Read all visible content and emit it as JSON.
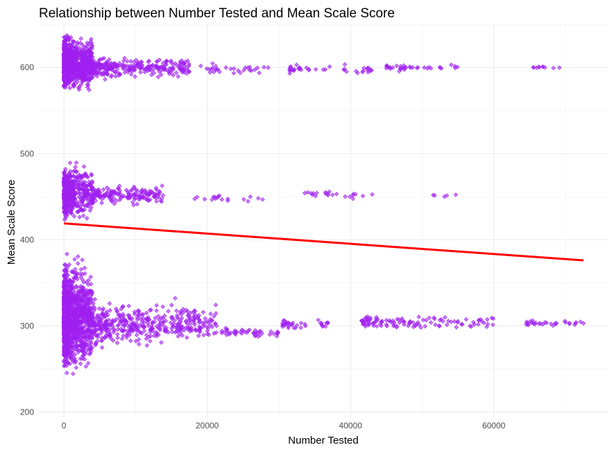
{
  "chart_data": {
    "type": "scatter",
    "title": "Relationship between Number Tested and Mean Scale Score",
    "xlabel": "Number Tested",
    "ylabel": "Mean Scale Score",
    "xlim": [
      -3500,
      76000
    ],
    "ylim": [
      193,
      651
    ],
    "x_ticks": [
      0,
      20000,
      40000,
      60000
    ],
    "x_tick_labels": [
      "0",
      "20000",
      "40000",
      "60000"
    ],
    "y_ticks": [
      200,
      300,
      400,
      500,
      600
    ],
    "y_tick_labels": [
      "200",
      "300",
      "400",
      "500",
      "600"
    ],
    "grid": true,
    "theme": "minimal",
    "point_color": "#a020f0",
    "line_color": "#ff0000",
    "trend_line": {
      "x": [
        0,
        72500
      ],
      "y": [
        419,
        376
      ]
    },
    "series": [
      {
        "clusters": [
          {
            "x_range": [
              0,
              4000
            ],
            "y_center": 605,
            "y_spread": 42,
            "n": 900
          },
          {
            "x_range": [
              4000,
              17500
            ],
            "y_center": 600,
            "y_spread": 18,
            "n": 260
          },
          {
            "x_range": [
              19000,
              29000
            ],
            "y_center": 598,
            "y_spread": 8,
            "n": 30
          },
          {
            "x_range": [
              31500,
              43500
            ],
            "y_center": 598,
            "y_spread": 7,
            "n": 40
          },
          {
            "x_range": [
              45000,
              55000
            ],
            "y_center": 600,
            "y_spread": 6,
            "n": 35
          },
          {
            "x_range": [
              65500,
              69500
            ],
            "y_center": 600,
            "y_spread": 2,
            "n": 10
          },
          {
            "x_range": [
              0,
              4000
            ],
            "y_center": 455,
            "y_spread": 42,
            "n": 500
          },
          {
            "x_range": [
              4000,
              14000
            ],
            "y_center": 452,
            "y_spread": 16,
            "n": 160
          },
          {
            "x_range": [
              17500,
              28500
            ],
            "y_center": 448,
            "y_spread": 6,
            "n": 18
          },
          {
            "x_range": [
              33500,
              43500
            ],
            "y_center": 452,
            "y_spread": 8,
            "n": 22
          },
          {
            "x_range": [
              51500,
              55000
            ],
            "y_center": 452,
            "y_spread": 3,
            "n": 5
          },
          {
            "x_range": [
              0,
              4000
            ],
            "y_center": 310,
            "y_spread": 85,
            "n": 1300
          },
          {
            "x_range": [
              4000,
              21500
            ],
            "y_center": 302,
            "y_spread": 34,
            "n": 420
          },
          {
            "x_range": [
              22000,
              30000
            ],
            "y_center": 292,
            "y_spread": 8,
            "n": 45
          },
          {
            "x_range": [
              30500,
              37500
            ],
            "y_center": 302,
            "y_spread": 8,
            "n": 35
          },
          {
            "x_range": [
              41500,
              60500
            ],
            "y_center": 304,
            "y_spread": 12,
            "n": 110
          },
          {
            "x_range": [
              64500,
              73000
            ],
            "y_center": 303,
            "y_spread": 5,
            "n": 30
          }
        ]
      }
    ]
  }
}
